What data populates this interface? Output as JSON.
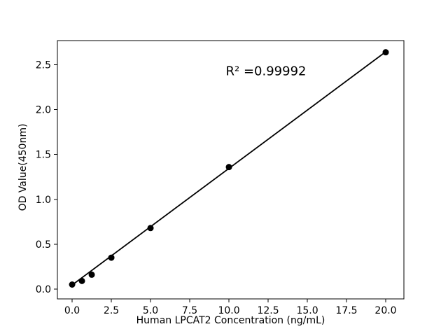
{
  "chart_data": {
    "type": "scatter",
    "title": "",
    "xlabel": "Human LPCAT2 Concentration (ng/mL)",
    "ylabel": "OD Value(450nm)",
    "annotation": "R² =0.99992",
    "r_squared": 0.99992,
    "x": [
      0,
      0.625,
      1.25,
      2.5,
      5,
      10,
      20
    ],
    "y": [
      0.05,
      0.09,
      0.16,
      0.35,
      0.68,
      1.36,
      2.64
    ],
    "fit_line": {
      "x": [
        0,
        20
      ],
      "y": [
        0.045,
        2.645
      ]
    },
    "xticks": [
      0.0,
      2.5,
      5.0,
      7.5,
      10.0,
      12.5,
      15.0,
      17.5,
      20.0
    ],
    "yticks": [
      0.0,
      0.5,
      1.0,
      1.5,
      2.0,
      2.5
    ],
    "xlim": [
      -0.94,
      21.16
    ],
    "ylim": [
      -0.11,
      2.77
    ],
    "grid": false,
    "legend": null,
    "marker_color": "#000000",
    "line_color": "#000000",
    "axis_color": "#000000",
    "background_color": "#ffffff"
  }
}
